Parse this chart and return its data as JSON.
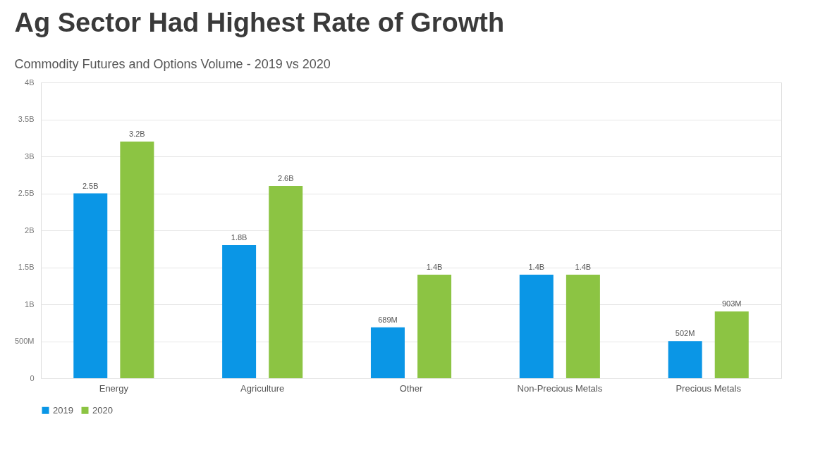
{
  "chart_data": {
    "type": "bar",
    "title": "Ag Sector Had Highest Rate of Growth",
    "subtitle": "Commodity Futures and Options Volume - 2019 vs 2020",
    "categories": [
      "Energy",
      "Agriculture",
      "Other",
      "Non-Precious Metals",
      "Precious Metals"
    ],
    "series": [
      {
        "name": "2019",
        "color": "#0a96e6",
        "values": [
          2500000000,
          1800000000,
          689000000,
          1400000000,
          502000000
        ],
        "value_labels": [
          "2.5B",
          "1.8B",
          "689M",
          "1.4B",
          "502M"
        ]
      },
      {
        "name": "2020",
        "color": "#8cc443",
        "values": [
          3200000000,
          2600000000,
          1400000000,
          1400000000,
          903000000
        ],
        "value_labels": [
          "3.2B",
          "2.6B",
          "1.4B",
          "1.4B",
          "903M"
        ]
      }
    ],
    "ylim": [
      0,
      4000000000
    ],
    "yticks": [
      0,
      {
        "value": 500000000,
        "label": "500M"
      },
      {
        "value": 1000000000,
        "label": "1B"
      },
      {
        "value": 1500000000,
        "label": "1.5B"
      },
      {
        "value": 2000000000,
        "label": "2B"
      },
      {
        "value": 2500000000,
        "label": "2.5B"
      },
      {
        "value": 3000000000,
        "label": "3B"
      },
      {
        "value": 3500000000,
        "label": "3.5B"
      },
      {
        "value": 4000000000,
        "label": "4B"
      }
    ],
    "grid": "y",
    "legend": "bottom"
  }
}
